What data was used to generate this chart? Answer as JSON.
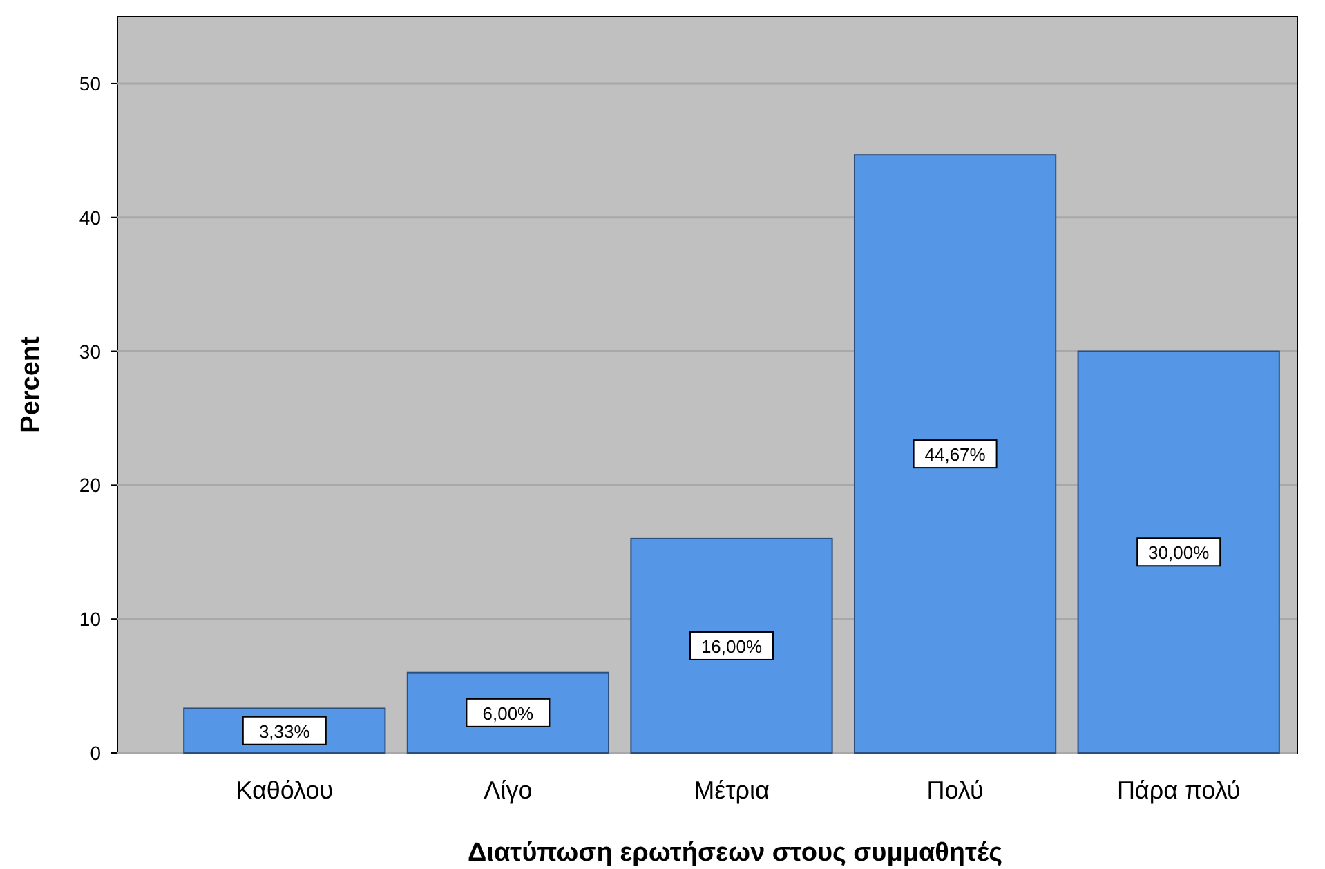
{
  "chart_data": {
    "type": "bar",
    "xlabel": "Διατύπωση ερωτήσεων στους συμμαθητές",
    "ylabel": "Percent",
    "categories": [
      "Καθόλου",
      "Λίγο",
      "Μέτρια",
      "Πολύ",
      "Πάρα πολύ"
    ],
    "values": [
      3.33,
      6.0,
      16.0,
      44.67,
      30.0
    ],
    "value_labels": [
      "3,33%",
      "6,00%",
      "16,00%",
      "44,67%",
      "30,00%"
    ],
    "color": "#5597e6",
    "ylim": [
      0,
      55
    ],
    "yticks": [
      0,
      10,
      20,
      30,
      40,
      50
    ],
    "grid": "y"
  }
}
